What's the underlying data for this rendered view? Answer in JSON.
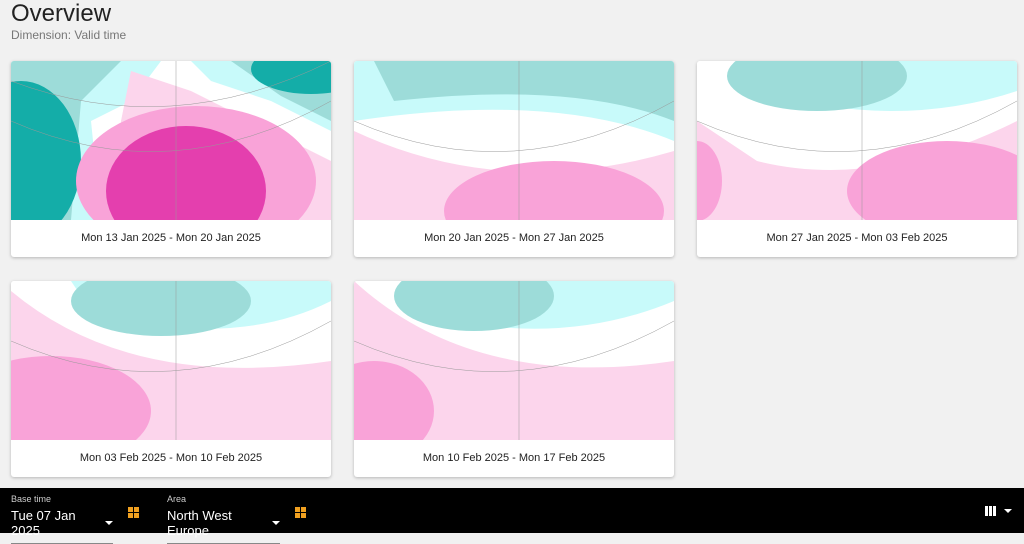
{
  "header": {
    "title": "Overview",
    "subtitle": "Dimension: Valid time"
  },
  "cards": [
    {
      "label": "Mon 13 Jan 2025 - Mon 20 Jan 2025"
    },
    {
      "label": "Mon 20 Jan 2025 - Mon 27 Jan 2025"
    },
    {
      "label": "Mon 27 Jan 2025 - Mon 03 Feb 2025"
    },
    {
      "label": "Mon 03 Feb 2025 - Mon 10 Feb 2025"
    },
    {
      "label": "Mon 10 Feb 2025 - Mon 17 Feb 2025"
    }
  ],
  "colors": {
    "teal_dark": "#14ada8",
    "teal_mid": "#9ddcd9",
    "cyan_light": "#c8fafa",
    "pink_light": "#fcd5ec",
    "pink_mid": "#f9a3d8",
    "magenta": "#e43fae"
  },
  "toolbar": {
    "base_time": {
      "label": "Base time",
      "value": "Tue 07 Jan 2025"
    },
    "area": {
      "label": "Area",
      "value": "North West Europe"
    },
    "grid_icon": "grid-icon",
    "columns_icon": "view-columns-icon"
  }
}
